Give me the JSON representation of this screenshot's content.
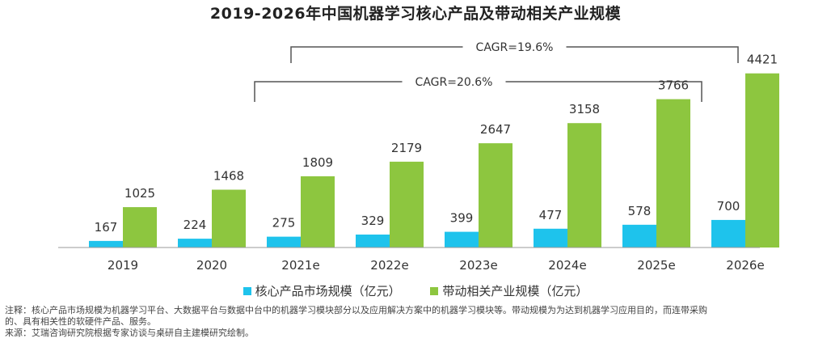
{
  "chart_data": {
    "type": "bar",
    "title": "2019-2026年中国机器学习核心产品及带动相关产业规模",
    "categories": [
      "2019",
      "2020",
      "2021e",
      "2022e",
      "2023e",
      "2024e",
      "2025e",
      "2026e"
    ],
    "series": [
      {
        "name": "核心产品市场规模（亿元）",
        "values": [
          167,
          224,
          275,
          329,
          399,
          477,
          578,
          700
        ],
        "color": "#1EC3EC"
      },
      {
        "name": "带动相关产业规模（亿元）",
        "values": [
          1025,
          1468,
          1809,
          2179,
          2647,
          3158,
          3766,
          4421
        ],
        "color": "#8DC63F"
      }
    ],
    "ylim": [
      0,
      4600
    ],
    "grid": false,
    "legend_position": "bottom",
    "annotations": [
      {
        "label": "CAGR=19.6%",
        "from_category": "2021e",
        "to_category": "2026e"
      },
      {
        "label": "CAGR=20.6%",
        "from_category": "2021e",
        "to_category": "2025e"
      }
    ]
  },
  "notes": {
    "line1": "注释：核心产品市场规模为机器学习平台、大数据平台与数据中台中的机器学习模块部分以及应用解决方案中的机器学习模块等。带动规模为为达到机器学习应用目的，而连带采购",
    "line2": "的、具有相关性的软硬件产品、服务。",
    "source": "来源：艾瑞咨询研究院根据专家访谈与桌研自主建模研究绘制。"
  },
  "colors": {
    "axis": "#999999",
    "bracket": "#555555",
    "label": "#333333"
  }
}
